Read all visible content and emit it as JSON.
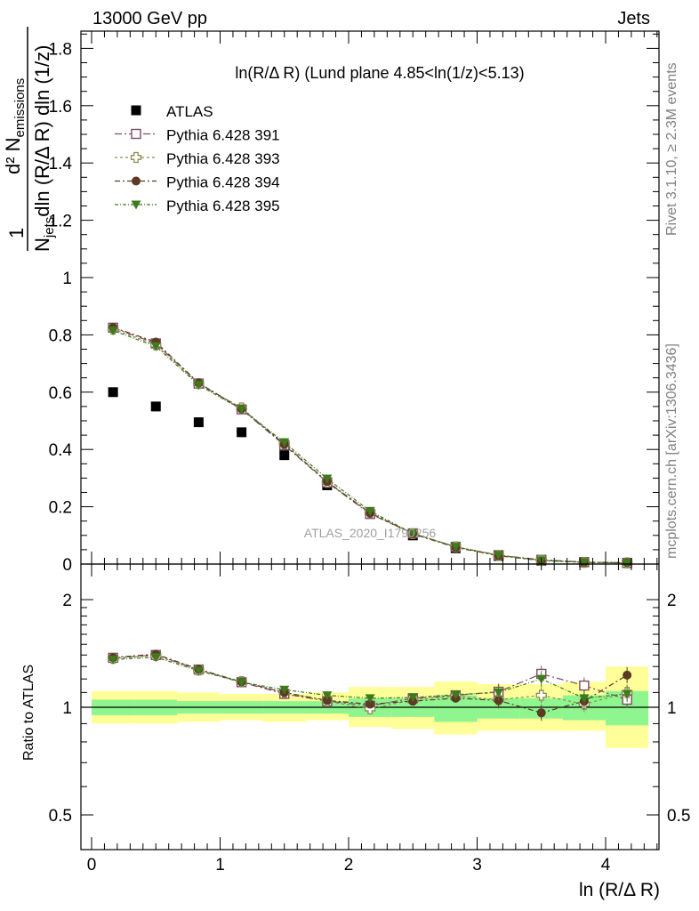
{
  "header": {
    "left": "13000 GeV pp",
    "right": "Jets"
  },
  "side_labels": {
    "right_top": "Rivet 3.1.10, ≥ 2.3M events",
    "right_bottom": "mcplots.cern.ch [arXiv:1306.3436]"
  },
  "watermark": "ATLAS_2020_I1790256",
  "chart_data": [
    {
      "type": "scatter",
      "title": "ln(R/Δ R) (Lund plane 4.85<ln(1/z)<5.13)",
      "ylabel": "1/N_jets d²N_emissions / dln(R/Δ R) dln(1/z)",
      "ylabel_parts": {
        "one": "1",
        "d2": "d² N",
        "emissions": "emissions",
        "njets": "N",
        "jets": "jets",
        "rest": "dln (R/Δ R) dln (1/z)"
      },
      "xlim": [
        -0.1,
        4.43
      ],
      "ylim": [
        0,
        1.86
      ],
      "y_ticks": [
        "0.2",
        "0.4",
        "0.6",
        "0.8",
        "1",
        "1.2",
        "1.4",
        "1.6",
        "1.8"
      ],
      "grid": false,
      "legend_position": "top-left",
      "x": [
        0.167,
        0.5,
        0.833,
        1.167,
        1.5,
        1.833,
        2.167,
        2.5,
        2.833,
        3.167,
        3.5,
        3.833,
        4.167
      ],
      "series": [
        {
          "name": "ATLAS",
          "marker": "filled-square",
          "color": "#000000",
          "values": [
            0.6,
            0.55,
            0.495,
            0.46,
            0.38,
            0.275,
            0.175,
            0.1,
            0.055,
            0.028,
            0.012,
            0.006,
            0.004
          ]
        },
        {
          "name": "Pythia 6.428 391",
          "marker": "open-square",
          "color": "#7b4e64",
          "values": [
            0.825,
            0.77,
            0.63,
            0.54,
            0.415,
            0.285,
            0.175,
            0.107,
            0.06,
            0.031,
            0.015,
            0.007,
            0.004
          ]
        },
        {
          "name": "Pythia 6.428 393",
          "marker": "open-cross",
          "color": "#8c8a50",
          "values": [
            0.82,
            0.765,
            0.63,
            0.545,
            0.42,
            0.285,
            0.18,
            0.106,
            0.06,
            0.03,
            0.013,
            0.006,
            0.004
          ]
        },
        {
          "name": "Pythia 6.428 394",
          "marker": "filled-circle",
          "color": "#5c3a24",
          "values": [
            0.826,
            0.775,
            0.632,
            0.542,
            0.418,
            0.288,
            0.178,
            0.105,
            0.058,
            0.029,
            0.012,
            0.006,
            0.005
          ]
        },
        {
          "name": "Pythia 6.428 395",
          "marker": "filled-triangle-down",
          "color": "#3f7a1c",
          "values": [
            0.815,
            0.76,
            0.625,
            0.54,
            0.425,
            0.298,
            0.185,
            0.107,
            0.06,
            0.031,
            0.013,
            0.006,
            0.004
          ]
        }
      ]
    },
    {
      "type": "scatter",
      "ylabel": "Ratio to ATLAS",
      "xlabel": "ln (R/Δ R)",
      "log_y": true,
      "ylim": [
        0.36,
        2.5
      ],
      "y_ticks": [
        "0.5",
        "1",
        "2"
      ],
      "x_ticks": [
        "0",
        "1",
        "2",
        "3",
        "4"
      ],
      "grid": false,
      "reference_line": 1,
      "bins": [
        [
          0,
          0.333
        ],
        [
          0.333,
          0.667
        ],
        [
          0.667,
          1.0
        ],
        [
          1.0,
          1.333
        ],
        [
          1.333,
          1.667
        ],
        [
          1.667,
          2.0
        ],
        [
          2.0,
          2.333
        ],
        [
          2.333,
          2.667
        ],
        [
          2.667,
          3.0
        ],
        [
          3.0,
          3.333
        ],
        [
          3.333,
          3.667
        ],
        [
          3.667,
          4.0
        ],
        [
          4.0,
          4.333
        ]
      ],
      "band_inner": {
        "color": "#8ff58f",
        "low": [
          0.95,
          0.95,
          0.96,
          0.96,
          0.96,
          0.96,
          0.94,
          0.94,
          0.91,
          0.93,
          0.93,
          0.92,
          0.89
        ],
        "high": [
          1.05,
          1.05,
          1.04,
          1.04,
          1.04,
          1.04,
          1.06,
          1.06,
          1.08,
          1.06,
          1.06,
          1.08,
          1.11
        ]
      },
      "band_outer": {
        "color": "#ffff99",
        "low": [
          0.9,
          0.9,
          0.91,
          0.92,
          0.91,
          0.92,
          0.88,
          0.87,
          0.84,
          0.86,
          0.86,
          0.86,
          0.77
        ],
        "high": [
          1.11,
          1.11,
          1.1,
          1.09,
          1.09,
          1.1,
          1.14,
          1.14,
          1.18,
          1.16,
          1.16,
          1.18,
          1.3
        ]
      },
      "series": [
        {
          "name": "Pythia 6.428 391",
          "values": [
            1.375,
            1.4,
            1.275,
            1.175,
            1.09,
            1.04,
            1.01,
            1.06,
            1.08,
            1.105,
            1.24,
            1.15,
            1.05
          ]
        },
        {
          "name": "Pythia 6.428 393",
          "values": [
            1.37,
            1.395,
            1.27,
            1.18,
            1.1,
            1.04,
            0.99,
            1.05,
            1.075,
            1.05,
            1.08,
            1.02,
            1.1
          ]
        },
        {
          "name": "Pythia 6.428 394",
          "values": [
            1.378,
            1.408,
            1.278,
            1.178,
            1.1,
            1.045,
            1.02,
            1.04,
            1.06,
            1.045,
            0.965,
            1.04,
            1.23
          ]
        },
        {
          "name": "Pythia 6.428 395",
          "values": [
            1.36,
            1.38,
            1.265,
            1.175,
            1.12,
            1.08,
            1.06,
            1.065,
            1.085,
            1.1,
            1.2,
            1.06,
            1.09
          ]
        }
      ]
    }
  ]
}
